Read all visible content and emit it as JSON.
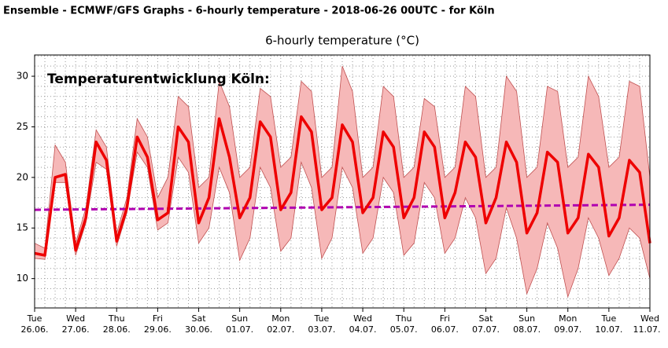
{
  "header": "Ensemble - ECMWF/GFS Graphs - 6-hourly temperature - 2018-06-26 00UTC - for Köln",
  "chart_data": {
    "type": "line",
    "title": "6-hourly temperature (°C)",
    "annotation": "Temperaturentwicklung Köln:",
    "xlim": [
      0,
      360
    ],
    "ylim": [
      7.1,
      32.1
    ],
    "yticks": [
      10,
      15,
      20,
      25,
      30
    ],
    "xticks": [
      {
        "value": 0,
        "label": "Tue"
      },
      {
        "value": 24,
        "label": "Wed"
      },
      {
        "value": 48,
        "label": "Thu"
      },
      {
        "value": 72,
        "label": "Fri"
      },
      {
        "value": 96,
        "label": "Sat"
      },
      {
        "value": 120,
        "label": "Sun"
      },
      {
        "value": 144,
        "label": "Mon"
      },
      {
        "value": 168,
        "label": "Tue"
      },
      {
        "value": 192,
        "label": "Wed"
      },
      {
        "value": 216,
        "label": "Thu"
      },
      {
        "value": 240,
        "label": "Fri"
      },
      {
        "value": 264,
        "label": "Sat"
      },
      {
        "value": 288,
        "label": "Sun"
      },
      {
        "value": 312,
        "label": "Mon"
      },
      {
        "value": 336,
        "label": "Tue"
      },
      {
        "value": 360,
        "label": "Wed"
      }
    ],
    "xtick_dates": [
      "26.06.",
      "27.06.",
      "28.06.",
      "29.06.",
      "30.06.",
      "01.07.",
      "02.07.",
      "03.07.",
      "04.07.",
      "05.07.",
      "06.07.",
      "07.07.",
      "08.07.",
      "09.07.",
      "10.07.",
      "11.07."
    ],
    "grid": true,
    "xgrid_step": 6,
    "ygrid_step": 1,
    "x": [
      0,
      6,
      12,
      18,
      24,
      30,
      36,
      42,
      48,
      54,
      60,
      66,
      72,
      78,
      84,
      90,
      96,
      102,
      108,
      114,
      120,
      126,
      132,
      138,
      144,
      150,
      156,
      162,
      168,
      174,
      180,
      186,
      192,
      198,
      204,
      210,
      216,
      222,
      228,
      234,
      240,
      246,
      252,
      258,
      264,
      270,
      276,
      282,
      288,
      294,
      300,
      306,
      312,
      318,
      324,
      330,
      336,
      342,
      348,
      354,
      360
    ],
    "band": {
      "color": "#f6b8b8",
      "edge": "#c05050",
      "upper": [
        13.5,
        13,
        23.2,
        21.5,
        13.5,
        17,
        24.7,
        23,
        14.5,
        18,
        25.8,
        24,
        18,
        20,
        28,
        27,
        19,
        20,
        29.5,
        27,
        20,
        21,
        28.8,
        28,
        21,
        22,
        29.5,
        28.5,
        20,
        21,
        31,
        28.5,
        20,
        21,
        29,
        28,
        20,
        21,
        27.8,
        27,
        20,
        21,
        29,
        28,
        20,
        21,
        30,
        28.5,
        20,
        21,
        29,
        28.5,
        21,
        22,
        30,
        28,
        21,
        22,
        29.5,
        29,
        20
      ],
      "lower": [
        12,
        11.9,
        19.5,
        19.5,
        12.3,
        15.5,
        21.5,
        20.8,
        13.2,
        16.5,
        22.5,
        21,
        14.8,
        15.5,
        22,
        20.5,
        13.5,
        15,
        21,
        18.5,
        11.8,
        14,
        21,
        19,
        12.7,
        14,
        21.5,
        19,
        12,
        14,
        21,
        19,
        12.5,
        14,
        20,
        18.5,
        12.3,
        13.5,
        19.5,
        18,
        12.5,
        14,
        18,
        16,
        10.5,
        12,
        17,
        14,
        8.5,
        11,
        15.5,
        13,
        8.2,
        11,
        16,
        14,
        10.3,
        12,
        15,
        14,
        10
      ]
    },
    "series": [
      {
        "color": "#ee0000",
        "values": [
          12.5,
          12.3,
          20,
          20.3,
          12.8,
          16,
          23.5,
          21.7,
          13.7,
          17,
          24,
          22,
          15.8,
          16.5,
          25,
          23.5,
          15.5,
          18,
          25.8,
          22,
          16,
          18,
          25.5,
          24,
          16.8,
          18.5,
          26,
          24.5,
          16.8,
          18,
          25.2,
          23.5,
          16.5,
          18,
          24.5,
          23,
          16,
          18,
          24.5,
          23,
          16,
          18.5,
          23.5,
          22,
          15.5,
          18,
          23.5,
          21.5,
          14.5,
          16.5,
          22.5,
          21.5,
          14.5,
          16,
          22.3,
          21,
          14.2,
          16,
          21.7,
          20.5,
          13.5
        ]
      }
    ],
    "climate": {
      "color": "#b000b0",
      "x": [
        0,
        360
      ],
      "values": [
        16.8,
        17.3
      ]
    }
  }
}
